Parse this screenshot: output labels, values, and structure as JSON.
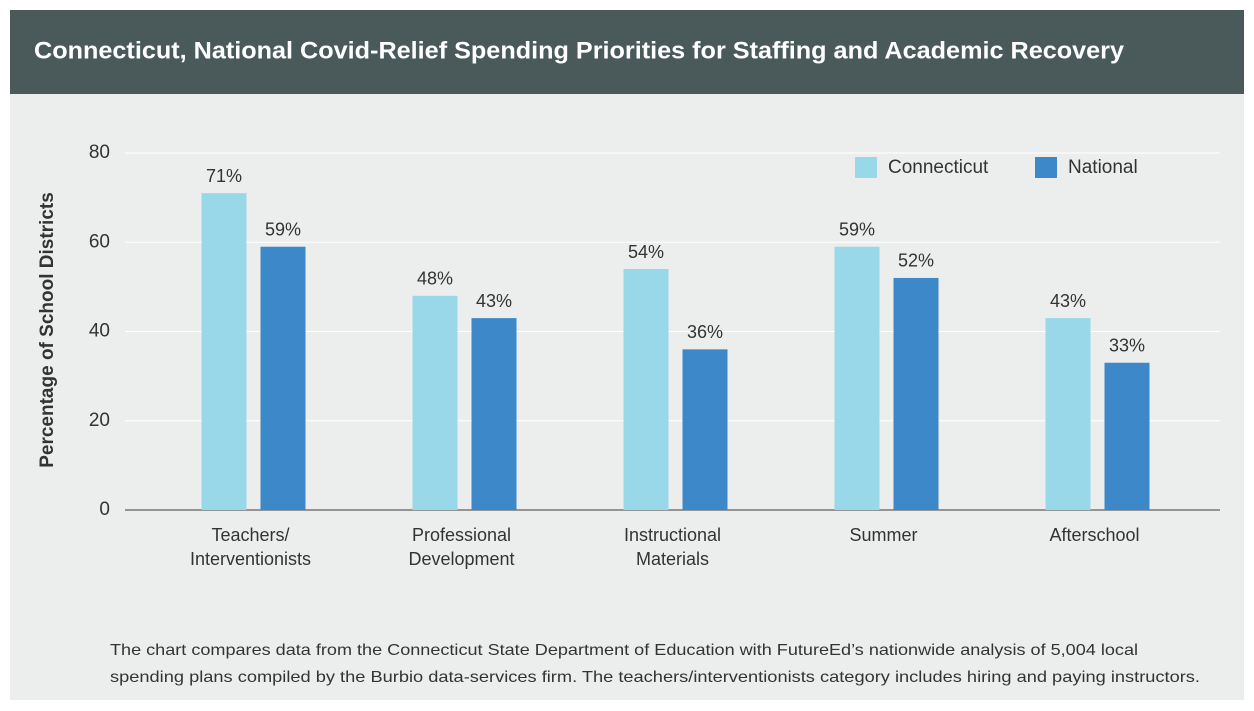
{
  "chart_data": {
    "type": "bar",
    "title": "Connecticut, National Covid-Relief Spending Priorities for Staffing and Academic Recovery",
    "y_label": "Percentage of School Districts",
    "categories": [
      "Teachers/ Interventionists",
      "Professional Development",
      "Instructional Materials",
      "Summer",
      "Afterschool"
    ],
    "series": [
      {
        "name": "Connecticut",
        "color": "#98d8e8",
        "values": [
          71,
          48,
          54,
          59,
          43
        ],
        "value_labels": [
          "71%",
          "48%",
          "54%",
          "59%",
          "43%"
        ]
      },
      {
        "name": "National",
        "color": "#3d88c9",
        "values": [
          59,
          43,
          36,
          52,
          33
        ],
        "value_labels": [
          "59%",
          "43%",
          "36%",
          "52%",
          "33%"
        ]
      }
    ],
    "ylim": [
      0,
      80
    ],
    "yticks": [
      0,
      20,
      40,
      60,
      80
    ],
    "grid": true,
    "legend": "top-right",
    "notes": [
      "The chart compares data from the Connecticut State Department of Education with FutureEd’s nationwide analysis of 5,004 local",
      "spending plans compiled by the Burbio data-services firm. The teachers/interventionists category includes hiring and paying instructors."
    ]
  }
}
